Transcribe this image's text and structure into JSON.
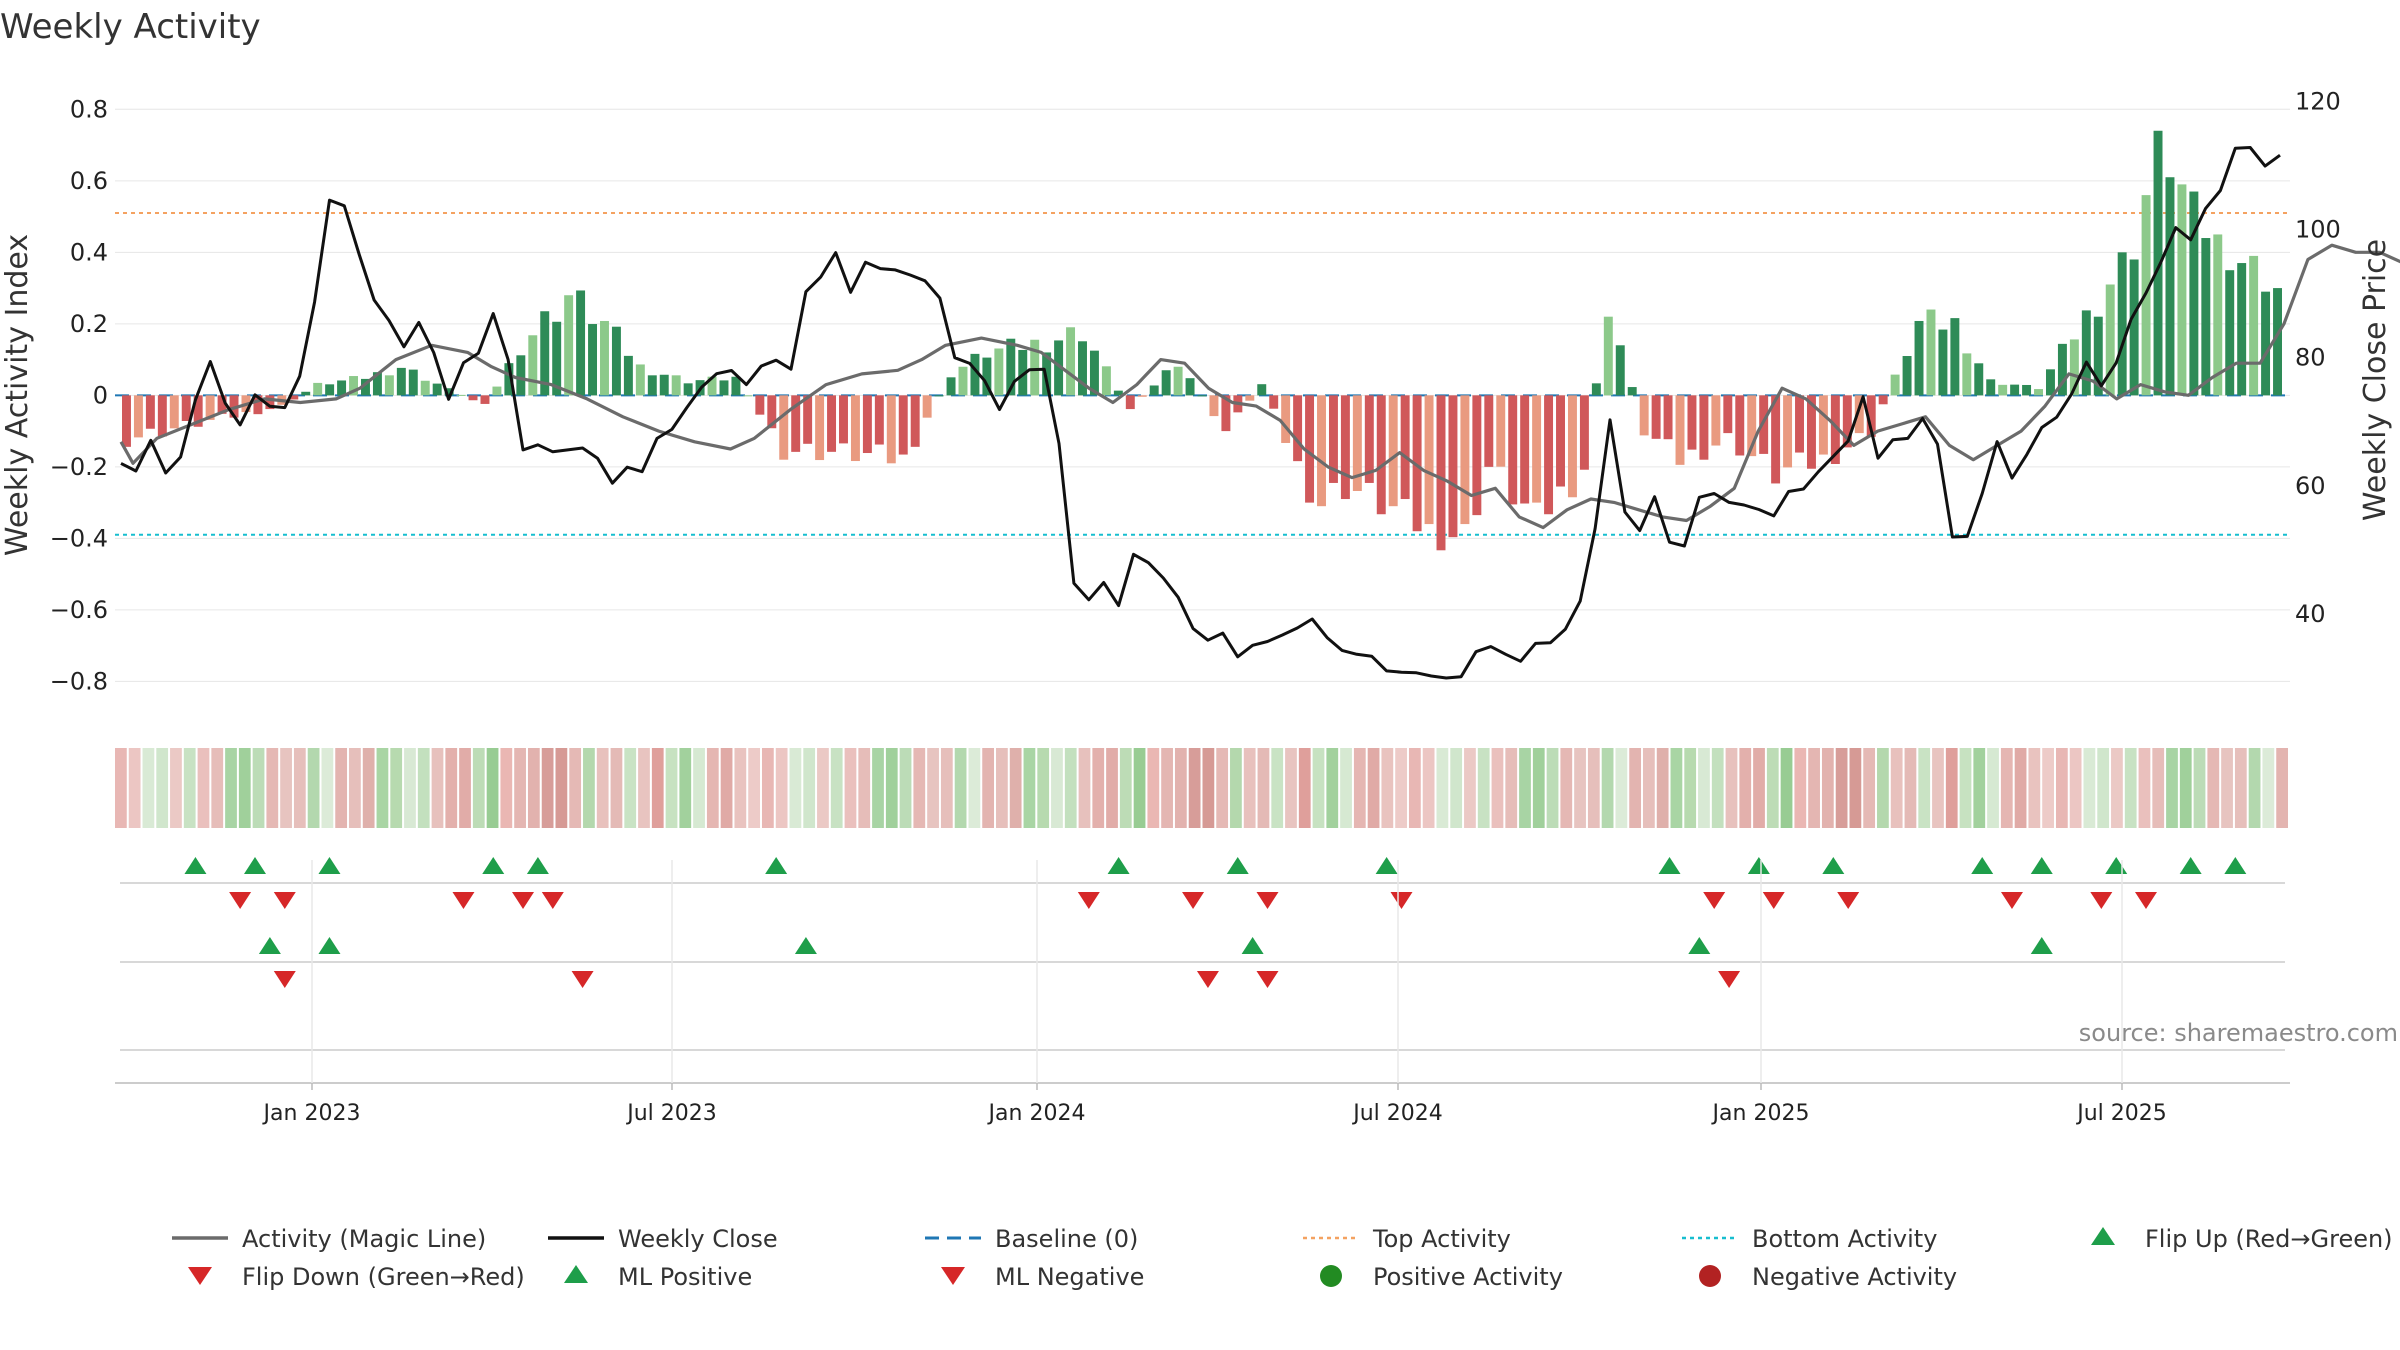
{
  "title": "Weekly Activity",
  "source": "source: sharemaestro.com",
  "colors": {
    "magic_line": "#6b6b6b",
    "close": "#111111",
    "baseline": "#1f77b4",
    "top": "#f4a261",
    "bottom": "#17becf",
    "pos_dark": "#2e8b57",
    "pos_light": "#8cc98a",
    "neg_dark": "#d0585a",
    "neg_light": "#e99a80",
    "up_marker": "#1e9e4a",
    "down_marker": "#d62728",
    "pos_dot": "#228b22",
    "neg_dot": "#b22222"
  },
  "chart_data": {
    "type": "bar",
    "title": "Weekly Activity",
    "ylabel": "Weekly Activity Index",
    "y2label": "Weekly Close Price",
    "ylim": [
      -0.88,
      0.84
    ],
    "y2lim": [
      25,
      121
    ],
    "yticks": [
      "0.8",
      "0.6",
      "0.4",
      "0.2",
      "0",
      "−0.2",
      "−0.4",
      "−0.6",
      "−0.8"
    ],
    "ytick_values": [
      0.8,
      0.6,
      0.4,
      0.2,
      0,
      -0.2,
      -0.4,
      -0.6,
      -0.8
    ],
    "y2ticks": [
      "120",
      "100",
      "80",
      "60",
      "40"
    ],
    "y2tick_values": [
      120,
      100,
      80,
      60,
      40
    ],
    "xticks": [
      "Jan 2023",
      "Jul 2023",
      "Jan 2024",
      "Jul 2024",
      "Jan 2025",
      "Jul 2025"
    ],
    "xtick_weeks": [
      32,
      58,
      84,
      110,
      136,
      162
    ],
    "week_count": 158,
    "top_activity": 0.51,
    "bottom_activity": -0.39,
    "baseline": 0,
    "activity_weeks": [
      [
        0,
        -0.12
      ],
      [
        13,
        -0.03
      ],
      [
        16,
        0.03
      ],
      [
        20,
        0.05
      ],
      [
        23,
        0.08
      ],
      [
        30,
        -0.03
      ],
      [
        33,
        0.14
      ],
      [
        37,
        0.28
      ],
      [
        40,
        0.2
      ],
      [
        43,
        0.08
      ],
      [
        47,
        0.04
      ],
      [
        51,
        0.05
      ],
      [
        55,
        -0.15
      ],
      [
        60,
        -0.16
      ],
      [
        65,
        -0.18
      ],
      [
        69,
        0.06
      ],
      [
        72,
        0.12
      ],
      [
        77,
        0.15
      ],
      [
        80,
        0.18
      ],
      [
        84,
        -0.04
      ],
      [
        88,
        0.1
      ],
      [
        92,
        -0.1
      ],
      [
        95,
        0.03
      ],
      [
        98,
        -0.2
      ],
      [
        100,
        -0.3
      ],
      [
        102,
        -0.25
      ],
      [
        106,
        -0.32
      ],
      [
        109,
        -0.38
      ],
      [
        112,
        -0.39
      ],
      [
        114,
        -0.2
      ],
      [
        118,
        -0.35
      ],
      [
        122,
        -0.2
      ],
      [
        124,
        0.26
      ],
      [
        127,
        -0.1
      ],
      [
        130,
        -0.18
      ],
      [
        134,
        -0.12
      ],
      [
        138,
        -0.22
      ],
      [
        142,
        -0.18
      ],
      [
        146,
        -0.1
      ],
      [
        150,
        0.2
      ],
      [
        153,
        0.2
      ],
      [
        156,
        0.04
      ],
      [
        160,
        0.02
      ],
      [
        164,
        0.22
      ],
      [
        168,
        0.42
      ],
      [
        170,
        0.7
      ],
      [
        174,
        0.46
      ],
      [
        176,
        0.4
      ],
      [
        178,
        0.36
      ],
      [
        180,
        0.3
      ]
    ],
    "magic_line_weeks": [
      [
        0,
        -0.13
      ],
      [
        1,
        -0.19
      ],
      [
        3,
        -0.12
      ],
      [
        6,
        -0.08
      ],
      [
        9,
        -0.04
      ],
      [
        12,
        -0.01
      ],
      [
        15,
        -0.02
      ],
      [
        18,
        -0.01
      ],
      [
        20,
        0.02
      ],
      [
        23,
        0.1
      ],
      [
        26,
        0.14
      ],
      [
        29,
        0.12
      ],
      [
        31,
        0.08
      ],
      [
        33,
        0.05
      ],
      [
        36,
        0.03
      ],
      [
        39,
        -0.01
      ],
      [
        42,
        -0.06
      ],
      [
        45,
        -0.1
      ],
      [
        48,
        -0.13
      ],
      [
        51,
        -0.15
      ],
      [
        53,
        -0.12
      ],
      [
        56,
        -0.04
      ],
      [
        59,
        0.03
      ],
      [
        62,
        0.06
      ],
      [
        65,
        0.07
      ],
      [
        67,
        0.1
      ],
      [
        69,
        0.14
      ],
      [
        72,
        0.16
      ],
      [
        75,
        0.14
      ],
      [
        77,
        0.12
      ],
      [
        79,
        0.07
      ],
      [
        81,
        0.02
      ],
      [
        83,
        -0.02
      ],
      [
        85,
        0.03
      ],
      [
        87,
        0.1
      ],
      [
        89,
        0.09
      ],
      [
        91,
        0.02
      ],
      [
        93,
        -0.02
      ],
      [
        95,
        -0.03
      ],
      [
        97,
        -0.07
      ],
      [
        99,
        -0.15
      ],
      [
        101,
        -0.2
      ],
      [
        103,
        -0.23
      ],
      [
        105,
        -0.21
      ],
      [
        107,
        -0.16
      ],
      [
        109,
        -0.21
      ],
      [
        111,
        -0.24
      ],
      [
        113,
        -0.28
      ],
      [
        115,
        -0.26
      ],
      [
        117,
        -0.34
      ],
      [
        119,
        -0.37
      ],
      [
        121,
        -0.32
      ],
      [
        123,
        -0.29
      ],
      [
        125,
        -0.3
      ],
      [
        127,
        -0.32
      ],
      [
        129,
        -0.34
      ],
      [
        131,
        -0.35
      ],
      [
        133,
        -0.31
      ],
      [
        135,
        -0.26
      ],
      [
        137,
        -0.1
      ],
      [
        139,
        0.02
      ],
      [
        141,
        -0.01
      ],
      [
        143,
        -0.07
      ],
      [
        145,
        -0.14
      ],
      [
        147,
        -0.1
      ],
      [
        149,
        -0.08
      ],
      [
        151,
        -0.06
      ],
      [
        153,
        -0.14
      ],
      [
        155,
        -0.18
      ],
      [
        157,
        -0.14
      ],
      [
        159,
        -0.1
      ],
      [
        161,
        -0.03
      ],
      [
        163,
        0.06
      ],
      [
        165,
        0.04
      ],
      [
        167,
        -0.01
      ],
      [
        169,
        0.03
      ],
      [
        171,
        0.01
      ],
      [
        173,
        0.0
      ],
      [
        175,
        0.05
      ],
      [
        177,
        0.09
      ],
      [
        179,
        0.09
      ],
      [
        181,
        0.2
      ],
      [
        183,
        0.38
      ],
      [
        185,
        0.42
      ],
      [
        187,
        0.4
      ],
      [
        189,
        0.4
      ],
      [
        191,
        0.37
      ]
    ],
    "close_points": [
      [
        0,
        63.5
      ],
      [
        1,
        62.3
      ],
      [
        2,
        67.1
      ],
      [
        3,
        62.0
      ],
      [
        4,
        64.5
      ],
      [
        5,
        73.4
      ],
      [
        6,
        79.4
      ],
      [
        7,
        72.9
      ],
      [
        8,
        69.5
      ],
      [
        9,
        74.2
      ],
      [
        10,
        72.4
      ],
      [
        11,
        72.2
      ],
      [
        12,
        77.1
      ],
      [
        13,
        88.7
      ],
      [
        14,
        104.6
      ],
      [
        15,
        103.7
      ],
      [
        16,
        96.1
      ],
      [
        17,
        89.0
      ],
      [
        18,
        85.8
      ],
      [
        19,
        81.7
      ],
      [
        20,
        85.5
      ],
      [
        21,
        80.8
      ],
      [
        22,
        73.5
      ],
      [
        23,
        79.2
      ],
      [
        24,
        80.7
      ],
      [
        25,
        86.9
      ],
      [
        26,
        79.7
      ],
      [
        27,
        65.6
      ],
      [
        28,
        66.4
      ],
      [
        29,
        65.3
      ],
      [
        30,
        65.6
      ],
      [
        31,
        65.9
      ],
      [
        32,
        64.3
      ],
      [
        33,
        60.4
      ],
      [
        34,
        62.9
      ],
      [
        35,
        62.2
      ],
      [
        36,
        67.4
      ],
      [
        37,
        68.8
      ],
      [
        38,
        72.2
      ],
      [
        39,
        75.4
      ],
      [
        40,
        77.5
      ],
      [
        41,
        78.0
      ],
      [
        42,
        75.8
      ],
      [
        43,
        78.7
      ],
      [
        44,
        79.6
      ],
      [
        45,
        78.2
      ],
      [
        46,
        90.3
      ],
      [
        47,
        92.6
      ],
      [
        48,
        96.4
      ],
      [
        49,
        90.2
      ],
      [
        50,
        94.9
      ],
      [
        51,
        93.9
      ],
      [
        52,
        93.7
      ],
      [
        53,
        92.9
      ],
      [
        54,
        92.0
      ],
      [
        55,
        89.3
      ],
      [
        56,
        80.0
      ],
      [
        57,
        79.1
      ],
      [
        58,
        76.4
      ],
      [
        59,
        71.9
      ],
      [
        60,
        76.3
      ],
      [
        61,
        78.1
      ],
      [
        62,
        78.2
      ],
      [
        63,
        66.6
      ],
      [
        64,
        44.8
      ],
      [
        65,
        42.2
      ],
      [
        66,
        44.9
      ],
      [
        67,
        41.3
      ],
      [
        68,
        49.3
      ],
      [
        69,
        48.0
      ],
      [
        70,
        45.6
      ],
      [
        71,
        42.6
      ],
      [
        72,
        37.7
      ],
      [
        73,
        35.9
      ],
      [
        74,
        37.0
      ],
      [
        75,
        33.3
      ],
      [
        76,
        35.1
      ],
      [
        77,
        35.7
      ],
      [
        78,
        36.7
      ],
      [
        79,
        37.8
      ],
      [
        80,
        39.2
      ],
      [
        81,
        36.3
      ],
      [
        82,
        34.3
      ],
      [
        83,
        33.7
      ],
      [
        84,
        33.4
      ],
      [
        85,
        31.1
      ],
      [
        86,
        30.9
      ],
      [
        87,
        30.8
      ],
      [
        88,
        30.3
      ],
      [
        89,
        30.0
      ],
      [
        90,
        30.2
      ],
      [
        91,
        34.1
      ],
      [
        92,
        34.9
      ],
      [
        93,
        33.7
      ],
      [
        94,
        32.6
      ],
      [
        95,
        35.4
      ],
      [
        96,
        35.5
      ],
      [
        97,
        37.6
      ],
      [
        98,
        42.0
      ],
      [
        99,
        53.3
      ],
      [
        100,
        70.3
      ],
      [
        101,
        55.9
      ],
      [
        102,
        53.0
      ],
      [
        103,
        58.3
      ],
      [
        104,
        51.2
      ],
      [
        105,
        50.6
      ],
      [
        106,
        58.2
      ],
      [
        107,
        58.8
      ],
      [
        108,
        57.4
      ],
      [
        109,
        57.0
      ],
      [
        110,
        56.3
      ],
      [
        111,
        55.3
      ],
      [
        112,
        59.1
      ],
      [
        113,
        59.5
      ],
      [
        114,
        62.2
      ],
      [
        115,
        64.6
      ],
      [
        116,
        67.0
      ],
      [
        117,
        73.9
      ],
      [
        118,
        64.3
      ],
      [
        119,
        67.2
      ],
      [
        120,
        67.4
      ],
      [
        121,
        70.5
      ],
      [
        122,
        66.5
      ],
      [
        123,
        52.0
      ],
      [
        124,
        52.1
      ],
      [
        125,
        58.8
      ],
      [
        126,
        66.9
      ],
      [
        127,
        61.2
      ],
      [
        128,
        64.9
      ],
      [
        129,
        69.1
      ],
      [
        130,
        70.7
      ],
      [
        131,
        74.3
      ],
      [
        132,
        79.3
      ],
      [
        133,
        75.6
      ],
      [
        134,
        79.2
      ],
      [
        135,
        86.0
      ],
      [
        136,
        90.1
      ],
      [
        137,
        94.9
      ],
      [
        138,
        100.3
      ],
      [
        139,
        98.4
      ],
      [
        140,
        103.3
      ],
      [
        141,
        106.1
      ],
      [
        142,
        112.7
      ],
      [
        143,
        112.8
      ],
      [
        144,
        109.9
      ],
      [
        145,
        111.6
      ]
    ],
    "heatstrip": [
      "#e8b7b4",
      "#ecc6c3",
      "#d9ead5",
      "#d0e6cc",
      "#ebc9c5",
      "#c8e2c3",
      "#eac0bd",
      "#e6bdb9",
      "#a8d4a4",
      "#a0d09b",
      "#bcdcb7",
      "#e5b8b4",
      "#e7c4c0",
      "#e6bfbb",
      "#b3d8ae",
      "#dcebd8",
      "#e3b4b0",
      "#e6bfbb",
      "#dfb0ab",
      "#a9d5a4",
      "#b7daaf",
      "#d8e9d4",
      "#c3e0be",
      "#e7c1bd",
      "#e3b0ac",
      "#e1aca8",
      "#bddcb6",
      "#98cc93",
      "#eab7b3",
      "#e4b6b2",
      "#e2b2ae",
      "#d79d99",
      "#d69a95",
      "#e5b9b5",
      "#b4d8ad",
      "#e8c1bd",
      "#e4bab6",
      "#c9e3c4",
      "#e8c4c0",
      "#df9f9b",
      "#c7e2c1",
      "#a2d19d",
      "#d6e9d2",
      "#e5b6b2",
      "#e0aaa6",
      "#e9c3bf",
      "#edcbc8"
    ],
    "flip_up_weeks": [
      5,
      9,
      14,
      25,
      28,
      44,
      67,
      75,
      85,
      104,
      110,
      115,
      125,
      129,
      134,
      139,
      142
    ],
    "flip_down_weeks": [
      8,
      11,
      23,
      27,
      29,
      65,
      72,
      77,
      86,
      107,
      111,
      116,
      127,
      133,
      136
    ],
    "ml_positive_weeks": [
      10,
      14,
      46,
      76,
      106,
      129
    ],
    "ml_negative_weeks": [
      11,
      31,
      73,
      77,
      108
    ]
  },
  "legend": [
    {
      "label": "Activity (Magic Line)",
      "icon": "magic-line-icon"
    },
    {
      "label": "Weekly Close",
      "icon": "close-line-icon"
    },
    {
      "label": "Baseline (0)",
      "icon": "baseline-dash-icon"
    },
    {
      "label": "Top Activity",
      "icon": "top-dotted-icon"
    },
    {
      "label": "Bottom Activity",
      "icon": "bottom-dotted-icon"
    },
    {
      "label": "Flip Up (Red→Green)",
      "icon": "triangle-up-icon"
    },
    {
      "label": "Flip Down (Green→Red)",
      "icon": "triangle-down-icon"
    },
    {
      "label": "ML Positive",
      "icon": "triangle-up-icon"
    },
    {
      "label": "ML Negative",
      "icon": "triangle-down-icon"
    },
    {
      "label": "Positive Activity",
      "icon": "dot-icon"
    },
    {
      "label": "Negative Activity",
      "icon": "dot-icon"
    }
  ]
}
